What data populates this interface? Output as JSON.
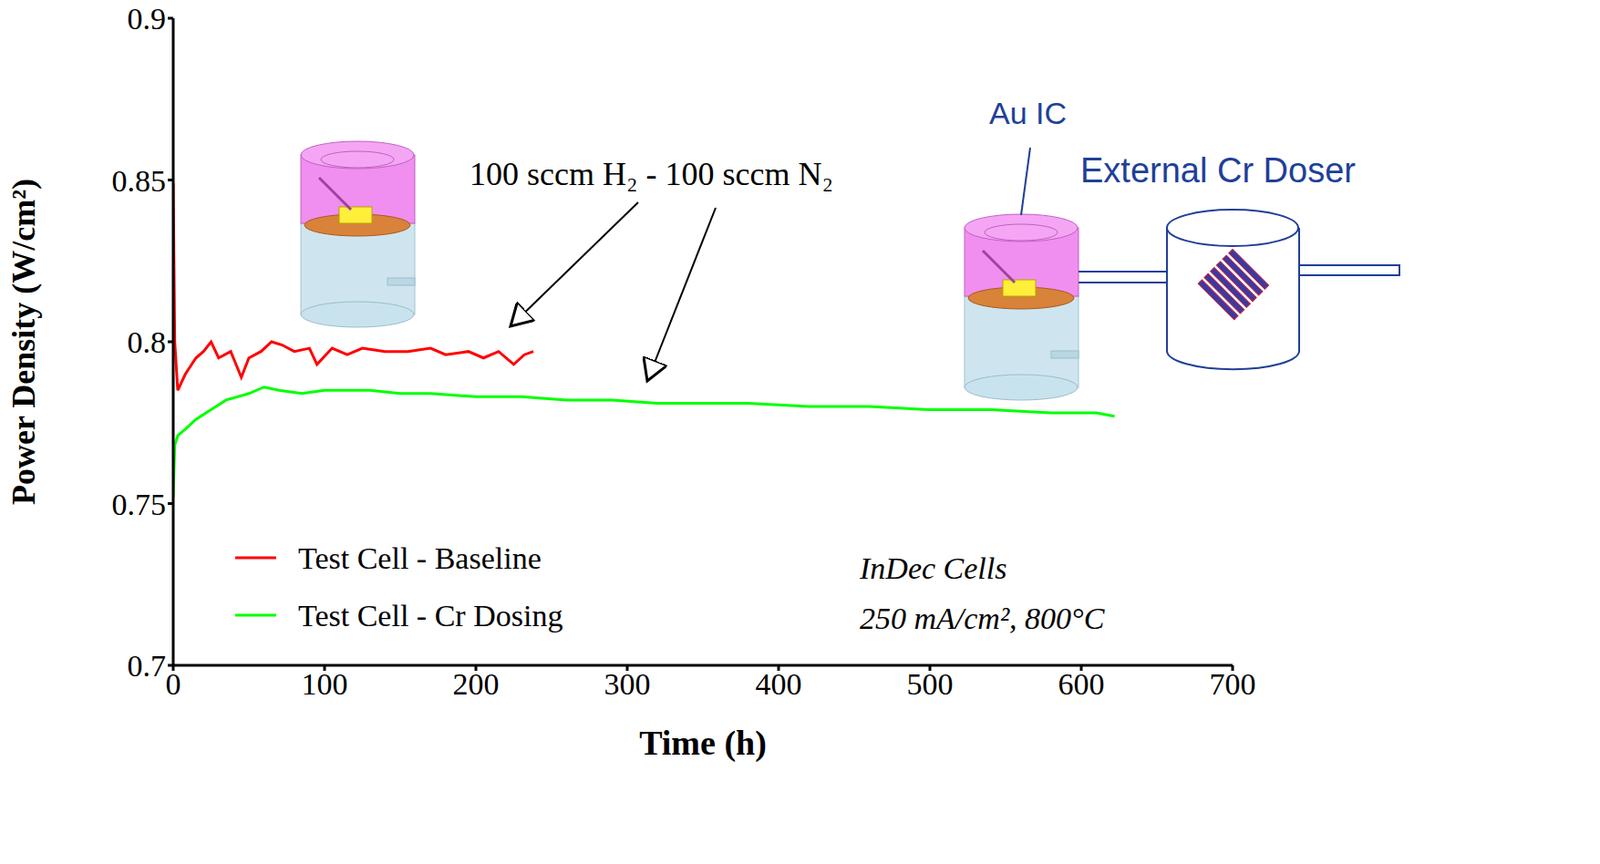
{
  "chart_data": {
    "type": "line",
    "xlabel": "Time (h)",
    "ylabel": "Power Density (W/cm²)",
    "xlim": [
      0,
      700
    ],
    "xticks": [
      0,
      100,
      200,
      300,
      400,
      500,
      600,
      700
    ],
    "ylim": [
      0.7,
      0.9
    ],
    "yticks": [
      0.7,
      0.75,
      0.8,
      0.85,
      0.9
    ],
    "grid": false,
    "legend": "lower left",
    "annotations": [
      "100 sccm H₂ - 100 sccm N₂",
      "Au IC",
      "External Cr Doser",
      "InDec Cells",
      "250 mA/cm², 800°C"
    ],
    "series": [
      {
        "name": "Test Cell - Baseline",
        "color": "#ff0000",
        "x": [
          0,
          1,
          3,
          8,
          15,
          20,
          25,
          30,
          38,
          45,
          50,
          58,
          65,
          72,
          80,
          90,
          95,
          105,
          115,
          125,
          140,
          155,
          170,
          180,
          195,
          205,
          215,
          225,
          232,
          238
        ],
        "values": [
          0.849,
          0.8,
          0.785,
          0.79,
          0.795,
          0.797,
          0.8,
          0.795,
          0.797,
          0.789,
          0.795,
          0.797,
          0.8,
          0.799,
          0.797,
          0.798,
          0.793,
          0.798,
          0.796,
          0.798,
          0.797,
          0.797,
          0.798,
          0.796,
          0.797,
          0.795,
          0.797,
          0.793,
          0.796,
          0.797
        ]
      },
      {
        "name": "Test Cell - Cr Dosing",
        "color": "#00ff00",
        "x": [
          0,
          1,
          3,
          8,
          15,
          25,
          35,
          50,
          60,
          70,
          85,
          100,
          115,
          130,
          150,
          170,
          200,
          230,
          260,
          290,
          320,
          350,
          380,
          420,
          460,
          500,
          540,
          580,
          610,
          622
        ],
        "values": [
          0.752,
          0.768,
          0.771,
          0.773,
          0.776,
          0.779,
          0.782,
          0.784,
          0.786,
          0.785,
          0.784,
          0.785,
          0.785,
          0.785,
          0.784,
          0.784,
          0.783,
          0.783,
          0.782,
          0.782,
          0.781,
          0.781,
          0.781,
          0.78,
          0.78,
          0.779,
          0.779,
          0.778,
          0.778,
          0.777
        ]
      }
    ]
  }
}
